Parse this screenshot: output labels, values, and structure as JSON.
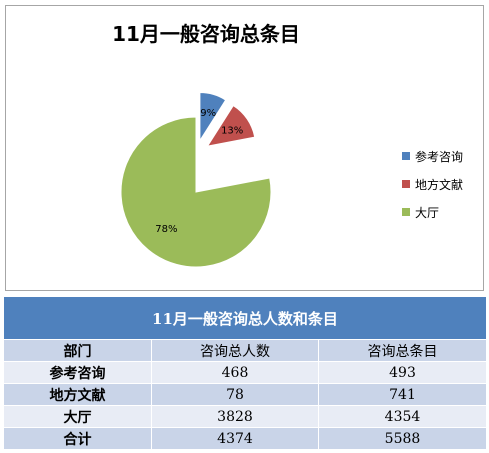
{
  "chart_data": {
    "type": "pie",
    "title": "11月一般咨询总条目",
    "categories": [
      "参考咨询",
      "地方文献",
      "大厅"
    ],
    "values": [
      9,
      13,
      78
    ],
    "labels": [
      "9%",
      "13%",
      "78%"
    ],
    "colors": [
      "#4f81bd",
      "#c0504d",
      "#9bbb59"
    ],
    "legend_position": "right",
    "exploded": true
  },
  "table": {
    "title": "11月一般咨询总人数和条目",
    "headers": [
      "部门",
      "咨询总人数",
      "咨询总条目"
    ],
    "rows": [
      {
        "label": "参考咨询",
        "people": "468",
        "items": "493"
      },
      {
        "label": "地方文献",
        "people": "78",
        "items": "741"
      },
      {
        "label": "大厅",
        "people": "3828",
        "items": "4354"
      },
      {
        "label": "合计",
        "people": "4374",
        "items": "5588"
      }
    ]
  }
}
